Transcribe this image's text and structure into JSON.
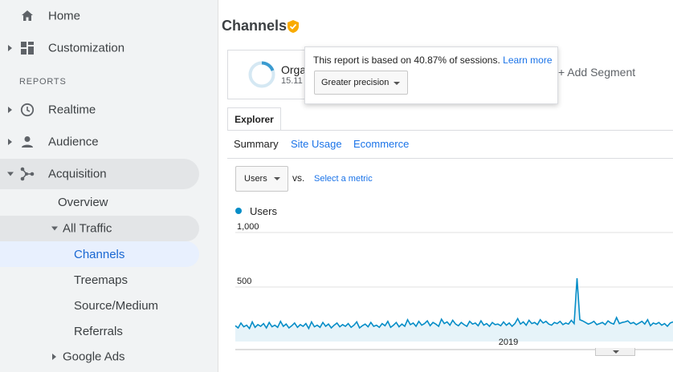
{
  "sidebar": {
    "home": "Home",
    "customization": "Customization",
    "reports_section": "REPORTS",
    "realtime": "Realtime",
    "audience": "Audience",
    "acquisition": "Acquisition",
    "overview": "Overview",
    "all_traffic": "All Traffic",
    "channels": "Channels",
    "treemaps": "Treemaps",
    "source_medium": "Source/Medium",
    "referrals": "Referrals",
    "google_ads": "Google Ads"
  },
  "header": {
    "title": "Channels"
  },
  "segment": {
    "name": "Orga",
    "percent": "15.11",
    "add_segment": "+ Add Segment"
  },
  "sampling_tooltip": {
    "text": "This report is based on 40.87% of sessions.",
    "link": "Learn more",
    "precision_option": "Greater precision"
  },
  "tabs": {
    "explorer": "Explorer"
  },
  "subtabs": {
    "summary": "Summary",
    "site_usage": "Site Usage",
    "ecommerce": "Ecommerce"
  },
  "metric": {
    "selected": "Users",
    "vs": "vs.",
    "select_metric": "Select a metric"
  },
  "colors": {
    "series": "#058dc7",
    "link": "#1a73e8",
    "verified": "#f9ab00",
    "active_item": "#e8f0fe"
  },
  "chart_data": {
    "type": "area",
    "series": [
      {
        "name": "Users",
        "values": [
          145,
          125,
          170,
          135,
          150,
          120,
          180,
          130,
          155,
          140,
          165,
          125,
          175,
          135,
          150,
          130,
          185,
          140,
          160,
          125,
          145,
          170,
          130,
          155,
          140,
          165,
          120,
          180,
          135,
          150,
          130,
          175,
          140,
          160,
          125,
          150,
          170,
          135,
          155,
          140,
          165,
          130,
          150,
          180,
          125,
          145,
          160,
          135,
          175,
          140,
          150,
          130,
          165,
          145,
          185,
          130,
          150,
          175,
          135,
          160,
          140,
          200,
          155,
          170,
          140,
          185,
          150,
          165,
          190,
          145,
          175,
          160,
          140,
          205,
          165,
          180,
          150,
          195,
          160,
          145,
          175,
          155,
          140,
          185,
          160,
          170,
          145,
          190,
          150,
          165,
          140,
          175,
          155,
          160,
          145,
          180,
          150,
          170,
          140,
          165,
          210,
          160,
          180,
          150,
          195,
          165,
          175,
          155,
          200,
          170,
          185,
          160,
          150,
          175,
          165,
          185,
          155,
          170,
          160,
          195,
          165,
          580,
          200,
          190,
          175,
          160,
          170,
          185,
          155,
          165,
          175,
          155,
          190,
          170,
          160,
          220,
          165,
          175,
          180,
          190,
          165,
          175,
          155,
          170,
          185,
          160,
          200,
          145,
          170,
          160,
          175,
          150,
          165,
          140,
          170,
          180
        ]
      }
    ],
    "ylabels": [
      "1,000",
      "500"
    ],
    "ylim": [
      0,
      1000
    ],
    "xlabel_tick": "2019",
    "grid": true,
    "legend": "top-left"
  }
}
